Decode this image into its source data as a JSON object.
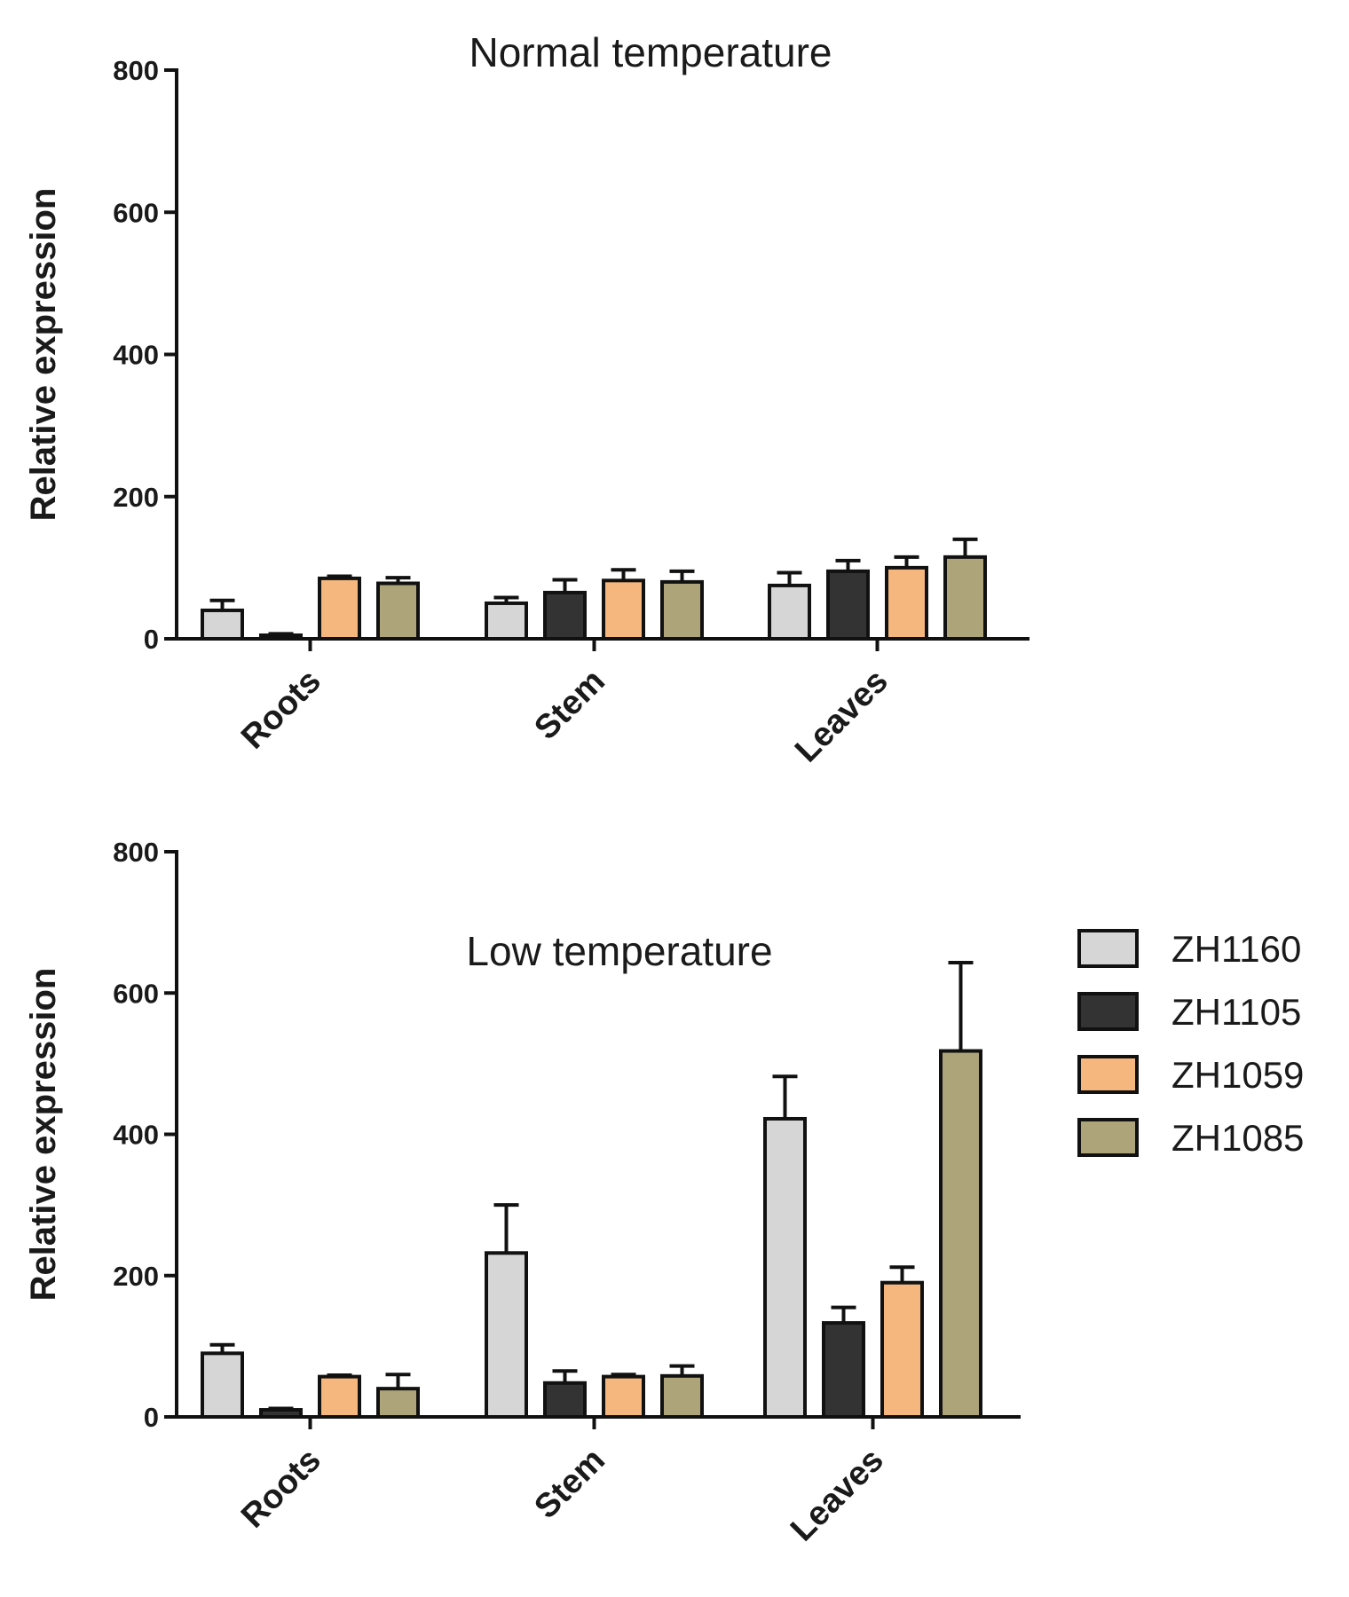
{
  "colors": {
    "ZH1160": "#d6d6d6",
    "ZH1105": "#333333",
    "ZH1059": "#f5b77d",
    "ZH1085": "#aea47a",
    "stroke": "#111111"
  },
  "legend": {
    "items": [
      "ZH1160",
      "ZH1105",
      "ZH1059",
      "ZH1085"
    ]
  },
  "chart_data": [
    {
      "type": "bar",
      "title": "Normal temperature",
      "ylabel": "Relative expression",
      "xlabel": "",
      "ylim": [
        0,
        800
      ],
      "yticks": [
        "0",
        "200",
        "400",
        "600",
        "800"
      ],
      "categories": [
        "Roots",
        "Stem",
        "Leaves"
      ],
      "series": [
        {
          "name": "ZH1160",
          "values": [
            40,
            50,
            75
          ],
          "errors": [
            14,
            8,
            18
          ]
        },
        {
          "name": "ZH1105",
          "values": [
            5,
            65,
            95
          ],
          "errors": [
            2,
            18,
            15
          ]
        },
        {
          "name": "ZH1059",
          "values": [
            85,
            82,
            100
          ],
          "errors": [
            3,
            15,
            15
          ]
        },
        {
          "name": "ZH1085",
          "values": [
            78,
            80,
            115
          ],
          "errors": [
            8,
            15,
            25
          ]
        }
      ]
    },
    {
      "type": "bar",
      "title": "Low temperature",
      "ylabel": "Relative expression",
      "xlabel": "",
      "ylim": [
        0,
        800
      ],
      "yticks": [
        "0",
        "200",
        "400",
        "600",
        "800"
      ],
      "categories": [
        "Roots",
        "Stem",
        "Leaves"
      ],
      "series": [
        {
          "name": "ZH1160",
          "values": [
            90,
            232,
            422
          ],
          "errors": [
            12,
            68,
            60
          ]
        },
        {
          "name": "ZH1105",
          "values": [
            10,
            48,
            133
          ],
          "errors": [
            2,
            17,
            22
          ]
        },
        {
          "name": "ZH1059",
          "values": [
            57,
            57,
            190
          ],
          "errors": [
            2,
            3,
            22
          ]
        },
        {
          "name": "ZH1085",
          "values": [
            40,
            58,
            518
          ],
          "errors": [
            20,
            14,
            125
          ]
        }
      ]
    }
  ]
}
